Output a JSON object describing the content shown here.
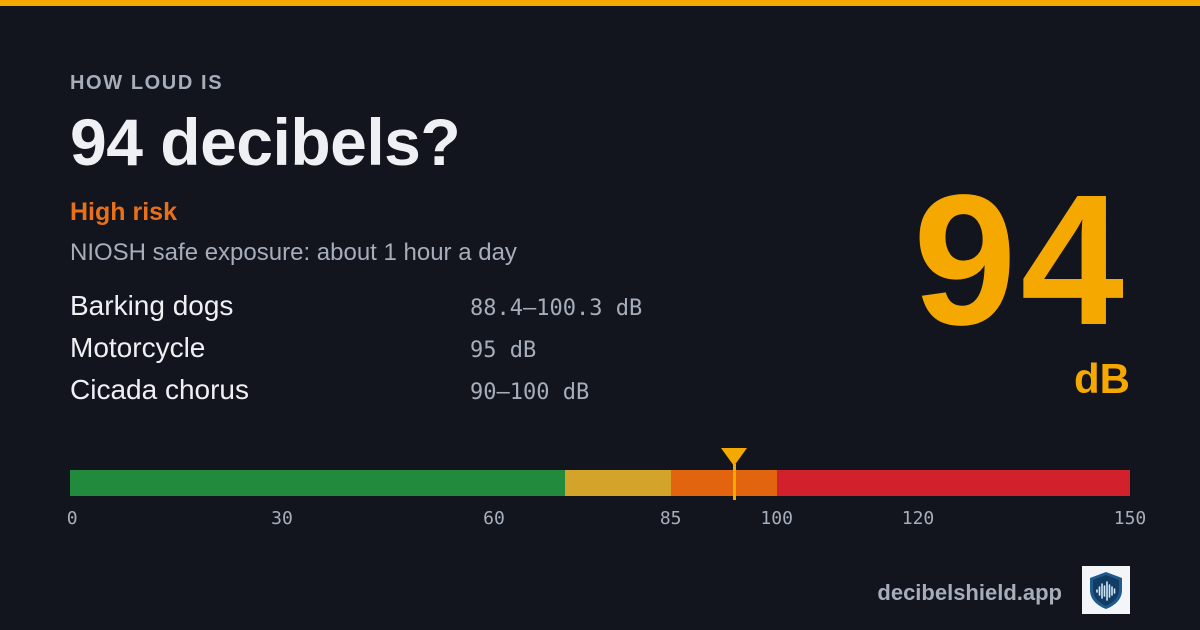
{
  "header": {
    "eyebrow": "HOW LOUD IS",
    "title": "94 decibels?",
    "risk_label": "High risk",
    "exposure": "NIOSH safe exposure: about 1 hour a day"
  },
  "examples": [
    {
      "name": "Barking dogs",
      "range": "88.4–100.3 dB"
    },
    {
      "name": "Motorcycle",
      "range": "95 dB"
    },
    {
      "name": "Cicada chorus",
      "range": "90–100 dB"
    }
  ],
  "reading": {
    "value": "94",
    "unit": "dB"
  },
  "scale": {
    "min": 0,
    "max": 150,
    "marker_value": 94,
    "ticks": [
      0,
      30,
      60,
      85,
      100,
      120,
      150
    ],
    "segments": [
      {
        "from": 0,
        "to": 70,
        "color": "#218a3c"
      },
      {
        "from": 70,
        "to": 85,
        "color": "#d4a42a"
      },
      {
        "from": 85,
        "to": 100,
        "color": "#e2640f"
      },
      {
        "from": 100,
        "to": 150,
        "color": "#d2212d"
      }
    ]
  },
  "brand": {
    "text": "decibelshield.app",
    "logo_icon": "shield-soundwave-icon"
  },
  "colors": {
    "background": "#12151d",
    "accent": "#f5a800",
    "risk": "#e8701a",
    "text_primary": "#eef0f4",
    "text_secondary": "#a6adbb"
  }
}
